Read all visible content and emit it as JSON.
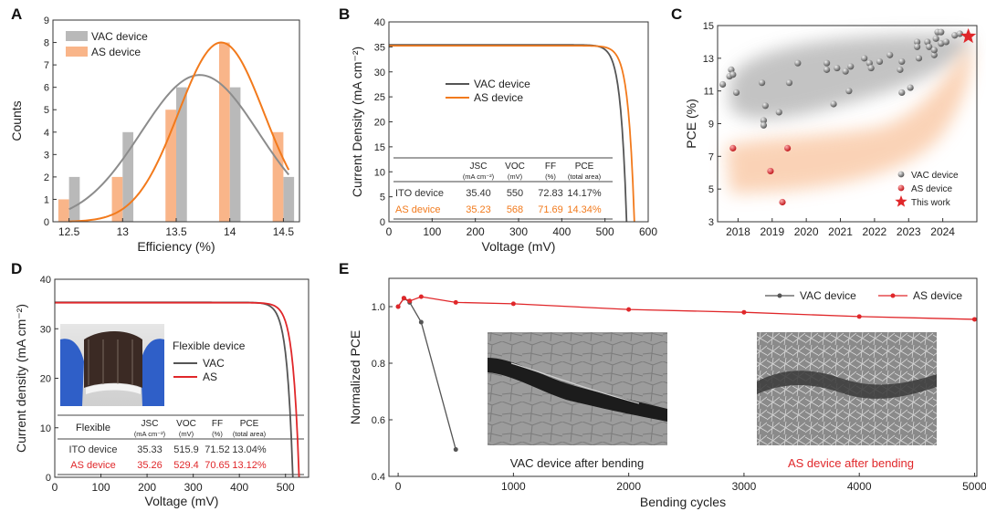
{
  "colors": {
    "vac": "#8c8c8c",
    "vac_bar": "#b9b9b9",
    "as_orange": "#f27a1c",
    "as_bar": "#f9b589",
    "as_red": "#e0272a",
    "vac_dark": "#555555"
  },
  "panels": {
    "A": "A",
    "B": "B",
    "C": "C",
    "D": "D",
    "E": "E"
  },
  "chart_data": [
    {
      "panel": "A",
      "type": "bar",
      "xlabel": "Efficiency (%)",
      "ylabel": "Counts",
      "xlim": [
        12.35,
        14.65
      ],
      "ylim": [
        0,
        9
      ],
      "xticks": [
        "12.5",
        "13",
        "13.5",
        "14",
        "14.5"
      ],
      "yticks": [
        "0",
        "1",
        "2",
        "3",
        "4",
        "5",
        "6",
        "7",
        "8",
        "9"
      ],
      "series": [
        {
          "name": "VAC device",
          "x": [
            12.55,
            13.05,
            13.55,
            14.05,
            14.55
          ],
          "values": [
            2,
            4,
            6,
            6,
            2
          ]
        },
        {
          "name": "AS device",
          "x": [
            12.45,
            12.95,
            13.45,
            13.95,
            14.45
          ],
          "values": [
            1,
            2,
            5,
            8,
            4
          ]
        }
      ],
      "fits": [
        {
          "name": "VAC device",
          "mean": 13.72,
          "sigma": 0.55,
          "peak": 6.55
        },
        {
          "name": "AS device",
          "mean": 13.92,
          "sigma": 0.4,
          "peak": 8.0
        }
      ]
    },
    {
      "panel": "B",
      "type": "line",
      "xlabel": "Voltage (mV)",
      "ylabel": "Current Density (mA cm⁻²)",
      "xlim": [
        0,
        600
      ],
      "ylim": [
        0,
        40
      ],
      "xticks": [
        "0",
        "100",
        "200",
        "300",
        "400",
        "500",
        "600"
      ],
      "yticks": [
        "0",
        "5",
        "10",
        "15",
        "20",
        "25",
        "30",
        "35",
        "40"
      ],
      "series": [
        {
          "name": "VAC device",
          "jsc": 35.4,
          "voc": 550
        },
        {
          "name": "AS device",
          "jsc": 35.23,
          "voc": 568
        }
      ],
      "table": {
        "headers": [
          "J_SC",
          "V_OC",
          "FF",
          "PCE"
        ],
        "subheaders": [
          "(mA cm⁻²)",
          "(mV)",
          "(%)",
          "(total area)"
        ],
        "rows": [
          {
            "label": "ITO device",
            "values": [
              "35.40",
              "550",
              "72.83",
              "14.17%"
            ]
          },
          {
            "label": "AS device",
            "values": [
              "35.23",
              "568",
              "71.69",
              "14.34%"
            ]
          }
        ]
      }
    },
    {
      "panel": "C",
      "type": "scatter",
      "xlabel": "",
      "ylabel": "PCE (%)",
      "xlim": [
        2017.4,
        2025.0
      ],
      "ylim": [
        3,
        15
      ],
      "xticks": [
        "2018",
        "2019",
        "2020",
        "2021",
        "2022",
        "2023",
        "2024"
      ],
      "yticks": [
        "3",
        "5",
        "7",
        "9",
        "11",
        "13",
        "15"
      ],
      "series": [
        {
          "name": "VAC device",
          "points": [
            [
              2017.55,
              11.4
            ],
            [
              2017.75,
              11.9
            ],
            [
              2017.8,
              12.3
            ],
            [
              2017.85,
              12.0
            ],
            [
              2017.95,
              10.9
            ],
            [
              2018.7,
              11.5
            ],
            [
              2018.75,
              9.2
            ],
            [
              2018.75,
              8.9
            ],
            [
              2018.8,
              10.1
            ],
            [
              2019.2,
              9.7
            ],
            [
              2019.5,
              11.5
            ],
            [
              2019.75,
              12.7
            ],
            [
              2020.6,
              12.7
            ],
            [
              2020.6,
              12.3
            ],
            [
              2020.8,
              10.2
            ],
            [
              2020.9,
              12.4
            ],
            [
              2021.15,
              12.2
            ],
            [
              2021.25,
              11.0
            ],
            [
              2021.3,
              12.5
            ],
            [
              2021.7,
              13.0
            ],
            [
              2021.85,
              12.7
            ],
            [
              2021.9,
              12.4
            ],
            [
              2022.15,
              12.8
            ],
            [
              2022.45,
              13.2
            ],
            [
              2022.75,
              12.3
            ],
            [
              2022.8,
              12.8
            ],
            [
              2022.8,
              10.9
            ],
            [
              2023.05,
              11.2
            ],
            [
              2023.25,
              14.0
            ],
            [
              2023.25,
              13.7
            ],
            [
              2023.3,
              13.0
            ],
            [
              2023.55,
              14.0
            ],
            [
              2023.6,
              13.7
            ],
            [
              2023.75,
              13.2
            ],
            [
              2023.8,
              14.2
            ],
            [
              2023.85,
              14.6
            ],
            [
              2023.95,
              14.6
            ],
            [
              2023.95,
              13.9
            ],
            [
              2023.75,
              13.5
            ],
            [
              2024.1,
              14.0
            ],
            [
              2024.35,
              14.4
            ],
            [
              2024.5,
              14.5
            ]
          ]
        },
        {
          "name": "AS device",
          "points": [
            [
              2017.85,
              7.5
            ],
            [
              2018.95,
              6.1
            ],
            [
              2019.3,
              4.2
            ],
            [
              2019.45,
              7.5
            ]
          ]
        },
        {
          "name": "This work",
          "points": [
            [
              2024.75,
              14.34
            ]
          ]
        }
      ]
    },
    {
      "panel": "D",
      "type": "line",
      "xlabel": "Voltage (mV)",
      "ylabel": "Current density (mA cm⁻²)",
      "xlim": [
        0,
        550
      ],
      "ylim": [
        0,
        40
      ],
      "xticks": [
        "0",
        "100",
        "200",
        "300",
        "400",
        "500"
      ],
      "yticks": [
        "0",
        "10",
        "20",
        "30",
        "40"
      ],
      "legend_title": "Flexible device",
      "series": [
        {
          "name": "VAC",
          "jsc": 35.33,
          "voc": 515.9
        },
        {
          "name": "AS",
          "jsc": 35.26,
          "voc": 529.4
        }
      ],
      "table": {
        "corner": "Flexible",
        "headers": [
          "J_SC",
          "V_OC",
          "FF",
          "PCE"
        ],
        "subheaders": [
          "(mA cm⁻²)",
          "(mV)",
          "(%)",
          "(total area)"
        ],
        "rows": [
          {
            "label": "ITO device",
            "values": [
              "35.33",
              "515.9",
              "71.52",
              "13.04%"
            ]
          },
          {
            "label": "AS device",
            "values": [
              "35.26",
              "529.4",
              "70.65",
              "13.12%"
            ]
          }
        ]
      }
    },
    {
      "panel": "E",
      "type": "line",
      "xlabel": "Bending cycles",
      "ylabel": "Normalized PCE",
      "xlim": [
        -80,
        5020
      ],
      "ylim": [
        0.4,
        1.1
      ],
      "xticks": [
        "0",
        "1000",
        "2000",
        "3000",
        "4000",
        "5000"
      ],
      "yticks": [
        "0.4",
        "0.6",
        "0.8",
        "1.0"
      ],
      "series": [
        {
          "name": "VAC device",
          "x": [
            0,
            50,
            100,
            200,
            500
          ],
          "values": [
            1.0,
            1.03,
            1.015,
            0.945,
            0.495
          ]
        },
        {
          "name": "AS device",
          "x": [
            0,
            50,
            100,
            200,
            500,
            1000,
            2000,
            3000,
            4000,
            5000
          ],
          "values": [
            1.0,
            1.03,
            1.02,
            1.035,
            1.015,
            1.01,
            0.99,
            0.98,
            0.965,
            0.955
          ]
        }
      ],
      "image_captions": [
        "VAC device after bending",
        "AS device after bending"
      ]
    }
  ]
}
